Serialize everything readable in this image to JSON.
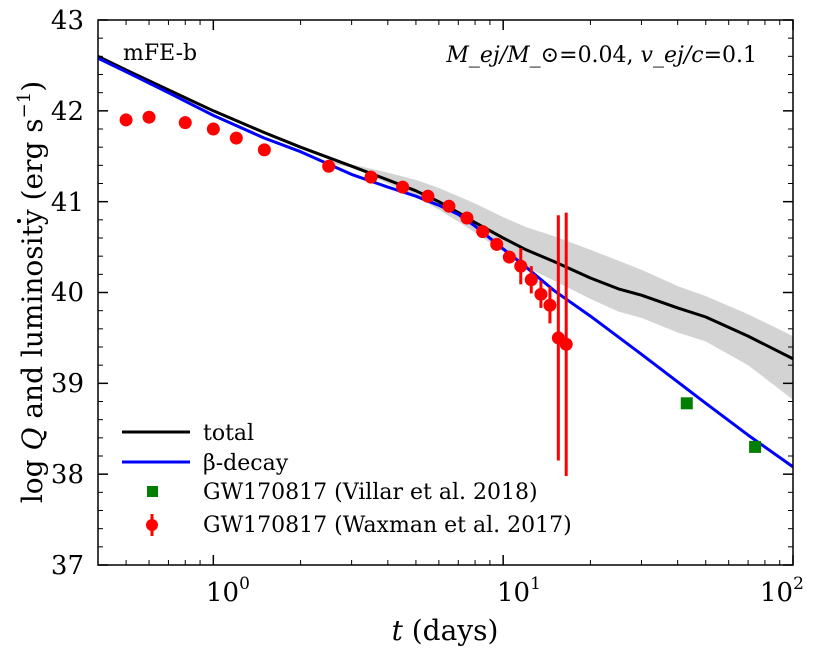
{
  "chart_data": {
    "type": "line",
    "annotation_model": "mFE-b",
    "annotation_params": {
      "mej_label": "M_ej/M_⊙",
      "mej_value": "0.04",
      "vej_label": "v_ej/c",
      "vej_value": "0.1"
    },
    "xlabel": {
      "var": "t",
      "unit": "(days)"
    },
    "ylabel": {
      "prefix": "log",
      "var": "Q",
      "middle": "and luminosity",
      "unit_open": "(erg s",
      "unit_exp": "−1",
      "unit_close": ")"
    },
    "x_scale": "log",
    "xlim": [
      0.4,
      100
    ],
    "ylim": [
      37,
      43
    ],
    "x_tick_labels": [
      {
        "value": 1,
        "base": "10",
        "exp": "0"
      },
      {
        "value": 10,
        "base": "10",
        "exp": "1"
      },
      {
        "value": 100,
        "base": "10",
        "exp": "2"
      }
    ],
    "y_ticks": [
      37,
      38,
      39,
      40,
      41,
      42,
      43
    ],
    "legend_position": "bottom-left",
    "series": [
      {
        "name": "total",
        "kind": "line",
        "color": "#000000",
        "x": [
          0.4,
          0.5,
          0.7,
          1.0,
          1.5,
          2.0,
          3.0,
          4.0,
          5.0,
          6.0,
          7.0,
          8.0,
          10.0,
          12.0,
          15.0,
          20.0,
          25.0,
          30.0,
          40.0,
          50.0,
          70.0,
          100.0
        ],
        "y": [
          42.6,
          42.45,
          42.23,
          42.0,
          41.76,
          41.6,
          41.39,
          41.24,
          41.12,
          41.0,
          40.88,
          40.77,
          40.6,
          40.47,
          40.34,
          40.16,
          40.04,
          39.97,
          39.83,
          39.73,
          39.52,
          39.27
        ]
      },
      {
        "name": "β-decay",
        "kind": "line",
        "color": "#0000ff",
        "x": [
          0.4,
          0.5,
          0.7,
          1.0,
          1.5,
          2.0,
          3.0,
          4.0,
          5.0,
          6.0,
          7.0,
          8.0,
          10.0,
          12.0,
          15.0,
          20.0,
          30.0,
          50.0,
          70.0,
          100.0
        ],
        "y": [
          42.58,
          42.43,
          42.2,
          41.95,
          41.7,
          41.55,
          41.3,
          41.16,
          41.06,
          40.96,
          40.86,
          40.73,
          40.48,
          40.28,
          40.02,
          39.74,
          39.32,
          38.78,
          38.43,
          38.08
        ]
      },
      {
        "name": "GW170817 (Villar et al. 2018)",
        "kind": "scatter",
        "marker": "square",
        "color": "#007f00",
        "x": [
          43.0,
          74.0
        ],
        "y": [
          38.78,
          38.3
        ]
      },
      {
        "name": "GW170817 (Waxman et al. 2017)",
        "kind": "errorbar",
        "marker": "circle",
        "color": "#ff0000",
        "x": [
          0.5,
          0.6,
          0.8,
          1.0,
          1.2,
          1.5,
          2.5,
          3.5,
          4.5,
          5.5,
          6.5,
          7.5,
          8.5,
          9.5,
          10.5,
          11.5,
          12.5,
          13.5,
          14.5,
          15.5,
          16.5
        ],
        "y": [
          41.9,
          41.93,
          41.87,
          41.8,
          41.7,
          41.57,
          41.39,
          41.27,
          41.16,
          41.06,
          40.95,
          40.82,
          40.67,
          40.53,
          40.39,
          40.29,
          40.14,
          39.98,
          39.86,
          39.5,
          39.43
        ],
        "err": [
          0.03,
          0.06,
          0.02,
          0.02,
          0.02,
          0.02,
          0.02,
          0.02,
          0.02,
          0.02,
          0.02,
          0.02,
          0.02,
          0.03,
          0.05,
          0.2,
          0.15,
          0.15,
          0.2,
          1.35,
          1.45
        ]
      }
    ],
    "band": {
      "color": "#d3d3d3",
      "x": [
        2.5,
        3.0,
        4.0,
        5.0,
        6.0,
        7.0,
        8.0,
        10.0,
        12.0,
        15.0,
        20.0,
        25.0,
        30.0,
        40.0,
        50.0,
        70.0,
        100.0
      ],
      "upper": [
        41.45,
        41.41,
        41.32,
        41.24,
        41.15,
        41.06,
        40.98,
        40.83,
        40.72,
        40.62,
        40.47,
        40.35,
        40.25,
        40.07,
        39.96,
        39.76,
        39.52
      ],
      "lower": [
        41.42,
        41.38,
        41.2,
        41.05,
        40.91,
        40.78,
        40.66,
        40.45,
        40.28,
        40.13,
        39.93,
        39.79,
        39.72,
        39.56,
        39.46,
        39.2,
        38.82
      ]
    }
  }
}
